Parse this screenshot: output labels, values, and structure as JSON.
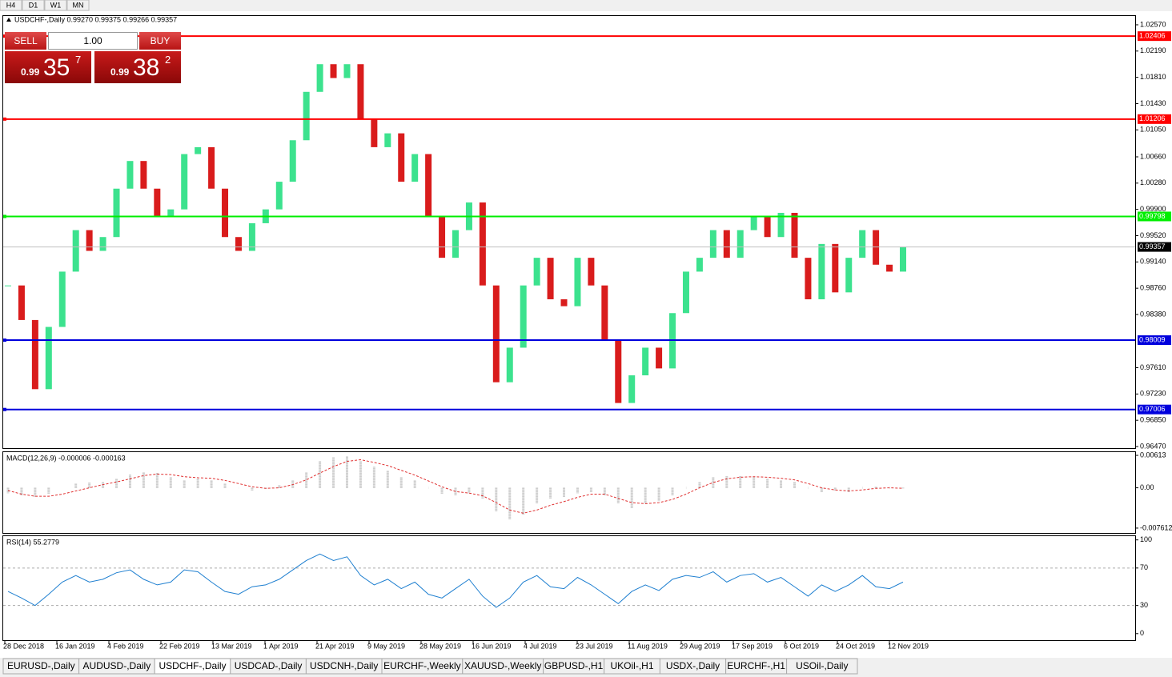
{
  "toolbar": {
    "timeframes": [
      "H4",
      "D1",
      "W1",
      "MN"
    ]
  },
  "trade_panel": {
    "sell": "SELL",
    "lot": "1.00",
    "buy": "BUY",
    "sell_big": "0.99",
    "sell_pips": "35",
    "sell_frac": "7",
    "buy_big": "0.99",
    "buy_pips": "38",
    "buy_frac": "2"
  },
  "chart_data": {
    "type": "candlestick",
    "title": "USDCHF-,Daily 0.99270 0.99375 0.99266 0.99357",
    "up_color": "#3ce28e",
    "down_color": "#d91c1c",
    "ylim": [
      0.96447,
      1.02697
    ],
    "yticks": [
      {
        "value": 1.0257,
        "label": "1.02570"
      },
      {
        "value": 1.0219,
        "label": "1.02190"
      },
      {
        "value": 1.0181,
        "label": "1.01810"
      },
      {
        "value": 1.0143,
        "label": "1.01430"
      },
      {
        "value": 1.0105,
        "label": "1.01050"
      },
      {
        "value": 1.0066,
        "label": "1.00660"
      },
      {
        "value": 1.0028,
        "label": "1.00280"
      },
      {
        "value": 0.999,
        "label": "0.99900"
      },
      {
        "value": 0.9952,
        "label": "0.99520"
      },
      {
        "value": 0.9914,
        "label": "0.99140"
      },
      {
        "value": 0.9876,
        "label": "0.98760"
      },
      {
        "value": 0.9838,
        "label": "0.98380"
      },
      {
        "value": 0.9761,
        "label": "0.97610"
      },
      {
        "value": 0.9723,
        "label": "0.97230"
      },
      {
        "value": 0.9685,
        "label": "0.96850"
      },
      {
        "value": 0.9647,
        "label": "0.96470"
      }
    ],
    "levels": [
      {
        "value": 1.02406,
        "label": "1.02406",
        "color": "#ff0000"
      },
      {
        "value": 1.01206,
        "label": "1.01206",
        "color": "#ff0000"
      },
      {
        "value": 0.99798,
        "label": "0.99798",
        "color": "#00ee00"
      },
      {
        "value": 0.98009,
        "label": "0.98009",
        "color": "#0000dd"
      },
      {
        "value": 0.97006,
        "label": "0.97006",
        "color": "#0000dd"
      }
    ],
    "current": {
      "value": 0.99357,
      "label": "0.99357"
    },
    "close": [
      0.988,
      0.983,
      0.973,
      0.982,
      0.99,
      0.996,
      0.993,
      0.995,
      1.002,
      1.006,
      1.002,
      0.998,
      0.999,
      1.007,
      1.008,
      1.002,
      0.995,
      0.993,
      0.997,
      0.999,
      1.003,
      1.009,
      1.016,
      1.02,
      1.018,
      1.02,
      1.012,
      1.008,
      1.01,
      1.003,
      1.007,
      0.998,
      0.992,
      0.996,
      1.0,
      0.988,
      0.974,
      0.979,
      0.988,
      0.992,
      0.986,
      0.985,
      0.992,
      0.988,
      0.98,
      0.971,
      0.975,
      0.979,
      0.976,
      0.984,
      0.99,
      0.992,
      0.996,
      0.992,
      0.996,
      0.998,
      0.995,
      0.9985,
      0.992,
      0.986,
      0.994,
      0.987,
      0.992,
      0.996,
      0.991,
      0.99,
      0.99357
    ],
    "dates": [
      "28 Dec 2018",
      "16 Jan 2019",
      "4 Feb 2019",
      "22 Feb 2019",
      "13 Mar 2019",
      "1 Apr 2019",
      "21 Apr 2019",
      "9 May 2019",
      "28 May 2019",
      "16 Jun 2019",
      "4 Jul 2019",
      "23 Jul 2019",
      "11 Aug 2019",
      "29 Aug 2019",
      "17 Sep 2019",
      "6 Oct 2019",
      "24 Oct 2019",
      "12 Nov 2019"
    ],
    "macd": {
      "label": "MACD(12,26,9) -0.000006 -0.000163",
      "ylim": [
        -0.00853,
        0.00674
      ],
      "yticks": [
        {
          "value": 0.00613,
          "label": "0.00613"
        },
        {
          "value": 0,
          "label": "0.00"
        },
        {
          "value": -0.007612,
          "label": "-0.007612"
        }
      ],
      "hist_color": "#b0b0b0",
      "signal_color": "#e03030",
      "hist": [
        -0.001,
        -0.0015,
        -0.0018,
        -0.0012,
        0,
        0.0008,
        0.001,
        0.0012,
        0.0018,
        0.0025,
        0.003,
        0.0028,
        0.002,
        0.0015,
        0.0018,
        0.0015,
        0.0008,
        0,
        -0.0005,
        -0.0003,
        0.0005,
        0.0015,
        0.003,
        0.005,
        0.0058,
        0.006,
        0.005,
        0.004,
        0.0032,
        0.002,
        0.0015,
        0,
        -0.0012,
        -0.0015,
        -0.001,
        -0.002,
        -0.0045,
        -0.006,
        -0.005,
        -0.003,
        -0.002,
        -0.0018,
        -0.001,
        -0.0008,
        -0.0015,
        -0.003,
        -0.0038,
        -0.003,
        -0.0025,
        -0.0015,
        0,
        0.0012,
        0.002,
        0.0022,
        0.0022,
        0.002,
        0.0018,
        0.0015,
        0.0012,
        0,
        -0.0008,
        -0.0005,
        -0.0008,
        0,
        0.0002,
        0,
        -0.0001
      ],
      "signal": [
        -0.0005,
        -0.0012,
        -0.0016,
        -0.0016,
        -0.0012,
        -0.0006,
        0,
        0.0006,
        0.0011,
        0.0017,
        0.0023,
        0.0026,
        0.0025,
        0.0021,
        0.0019,
        0.0018,
        0.0014,
        0.0008,
        0.0002,
        -0.0001,
        0,
        0.0006,
        0.0015,
        0.0028,
        0.004,
        0.005,
        0.0053,
        0.0048,
        0.0042,
        0.0033,
        0.0024,
        0.0013,
        0.0002,
        -0.0007,
        -0.001,
        -0.0015,
        -0.0028,
        -0.0042,
        -0.0048,
        -0.0042,
        -0.0033,
        -0.0026,
        -0.0018,
        -0.0012,
        -0.0012,
        -0.002,
        -0.0028,
        -0.003,
        -0.0028,
        -0.0022,
        -0.0012,
        0,
        0.001,
        0.0017,
        0.002,
        0.0021,
        0.002,
        0.0018,
        0.0015,
        0.0008,
        0,
        -0.0004,
        -0.0006,
        -0.0004,
        -0.0001,
        0,
        -0.0001
      ]
    },
    "rsi": {
      "label": "RSI(14) 55.2779",
      "ylim": [
        -7,
        104
      ],
      "yticks": [
        100,
        70,
        30,
        0
      ],
      "color": "#1e7fd0",
      "values": [
        45,
        38,
        30,
        42,
        55,
        62,
        55,
        58,
        65,
        68,
        58,
        52,
        55,
        68,
        66,
        55,
        45,
        42,
        50,
        52,
        58,
        68,
        78,
        85,
        78,
        82,
        62,
        52,
        58,
        48,
        55,
        42,
        38,
        48,
        58,
        40,
        28,
        38,
        55,
        62,
        50,
        48,
        60,
        52,
        42,
        32,
        45,
        52,
        46,
        58,
        62,
        60,
        66,
        55,
        62,
        64,
        55,
        60,
        50,
        40,
        52,
        45,
        52,
        62,
        50,
        48,
        55
      ]
    }
  },
  "tabs": {
    "items": [
      "EURUSD-,Daily",
      "AUDUSD-,Daily",
      "USDCHF-,Daily",
      "USDCAD-,Daily",
      "USDCNH-,Daily",
      "EURCHF-,Weekly",
      "XAUUSD-,Weekly",
      "GBPUSD-,H1",
      "UKOil-,H1",
      "USDX-,Daily",
      "EURCHF-,H1",
      "USOil-,Daily"
    ],
    "active": "USDCHF-,Daily"
  }
}
